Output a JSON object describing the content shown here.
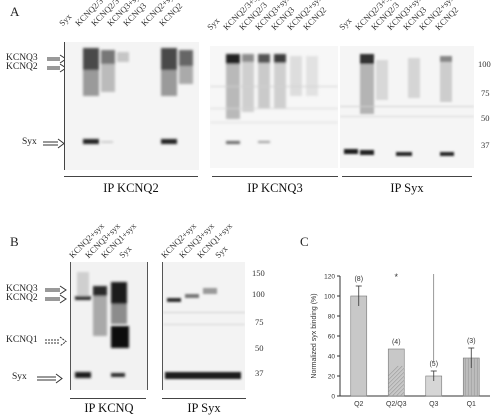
{
  "panel_a": {
    "letter": "A",
    "left_labels": [
      "KCNQ3",
      "KCNQ2",
      "Syx"
    ],
    "mw_labels": [
      "100",
      "75",
      "50",
      "37"
    ],
    "blots": [
      {
        "ip": "IP KCNQ2",
        "lanes": [
          "Syx",
          "KCNQ2/3+syx",
          "KCNQ2/3",
          "KCNQ3+syx",
          "KCNQ3",
          "KCNQ2+syx",
          "KCNQ2"
        ]
      },
      {
        "ip": "IP KCNQ3",
        "lanes": [
          "Syx",
          "KCNQ2/3+syx",
          "KCNQ2/3",
          "KCNQ3+syx",
          "KCNQ3",
          "KCNQ2+syx",
          "KCNQ2"
        ]
      },
      {
        "ip": "IP Syx",
        "lanes": [
          "Syx",
          "KCNQ2/3+syx",
          "KCNQ2/3",
          "KCNQ3+syx",
          "KCNQ3",
          "KCNQ2+syx",
          "KCNQ2"
        ]
      }
    ]
  },
  "panel_b": {
    "letter": "B",
    "left_labels": [
      "KCNQ3",
      "KCNQ2",
      "KCNQ1",
      "Syx"
    ],
    "mw_labels": [
      "150",
      "100",
      "75",
      "50",
      "37"
    ],
    "blots": [
      {
        "ip": "IP KCNQ",
        "lanes": [
          "KCNQ2+syx",
          "KCNQ3+syx",
          "KCNQ1+syx",
          "Syx"
        ]
      },
      {
        "ip": "IP Syx",
        "lanes": [
          "KCNQ2+syx",
          "KCNQ3+syx",
          "KCNQ1+syx",
          "Syx"
        ]
      }
    ]
  },
  "panel_c": {
    "letter": "C",
    "significance_mark": "*",
    "chart_data": {
      "type": "bar",
      "categories": [
        "Q2",
        "Q2/Q3",
        "Q3",
        "Q1"
      ],
      "values": [
        100,
        47,
        20,
        38
      ],
      "errors": [
        10,
        0,
        5,
        10
      ],
      "n_labels": [
        "(8)",
        "(4)",
        "(5)",
        "(3)"
      ],
      "ylabel": "Normalized syx binding (%)",
      "yticks": [
        "0",
        "20",
        "40",
        "60",
        "80",
        "100",
        "120"
      ],
      "ylim": [
        0,
        120
      ],
      "bar_fills": [
        "#c8c8c8",
        "#c8c8c8",
        "#d6d6d6",
        "#bdbdbd"
      ]
    }
  }
}
